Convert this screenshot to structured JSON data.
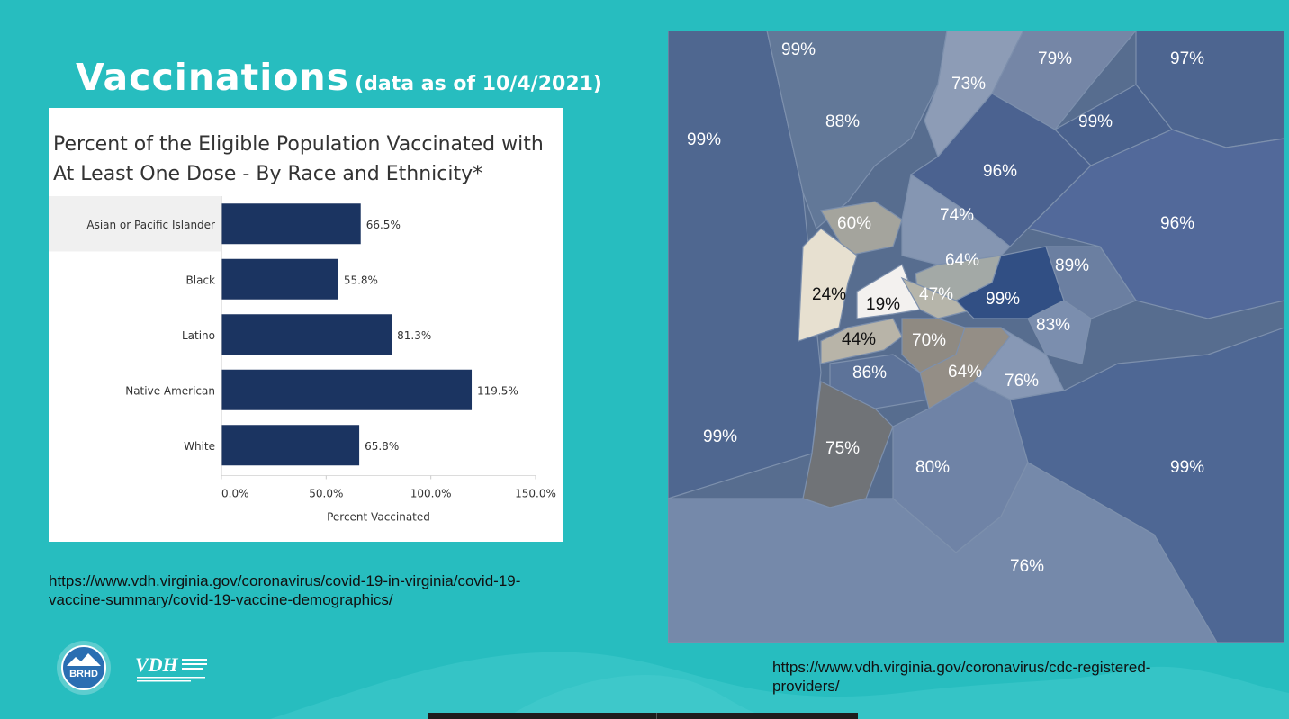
{
  "slide": {
    "title": "Vaccinations",
    "subtitle": "(data as of 10/4/2021)",
    "source_left": "https://www.vdh.virginia.gov/coronavirus/covid-19-in-virginia/covid-19-vaccine-summary/covid-19-vaccine-demographics/",
    "source_right": "https://www.vdh.virginia.gov/coronavirus/cdc-registered-providers/",
    "logo_brhd": "BRHD",
    "logo_vdh": "VDH",
    "background_color": "#27bdbf"
  },
  "chart_data": {
    "type": "bar",
    "orientation": "horizontal",
    "title": "Percent of the Eligible Population Vaccinated with At Least One Dose - By Race and Ethnicity*",
    "categories": [
      "Asian or Pacific Islander",
      "Black",
      "Latino",
      "Native American",
      "White"
    ],
    "values": [
      66.5,
      55.8,
      81.3,
      119.5,
      65.8
    ],
    "data_labels": [
      "66.5%",
      "55.8%",
      "81.3%",
      "119.5%",
      "65.8%"
    ],
    "xlabel": "Percent Vaccinated",
    "ylabel": "",
    "xlim": [
      0,
      150
    ],
    "xticks": [
      "0.0%",
      "50.0%",
      "100.0%",
      "150.0%"
    ],
    "highlighted_category": "Asian or Pacific Islander",
    "bar_color": "#1b3461",
    "grid": false
  },
  "map": {
    "labels": [
      "99%",
      "79%",
      "97%",
      "73%",
      "88%",
      "99%",
      "99%",
      "96%",
      "60%",
      "74%",
      "96%",
      "64%",
      "89%",
      "24%",
      "19%",
      "47%",
      "99%",
      "83%",
      "44%",
      "70%",
      "86%",
      "64%",
      "76%",
      "99%",
      "75%",
      "80%",
      "99%",
      "76%"
    ]
  }
}
